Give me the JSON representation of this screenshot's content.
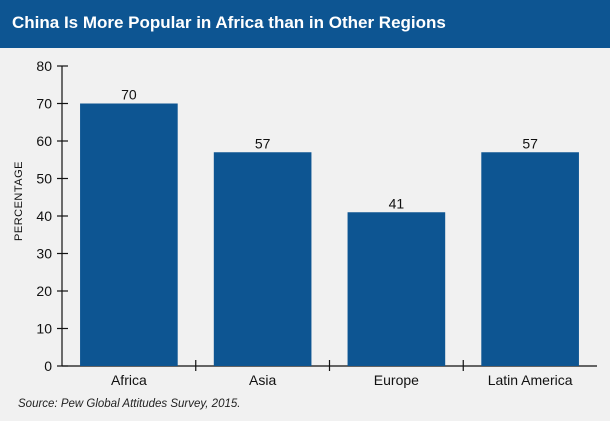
{
  "title": "China Is More Popular in Africa than in Other Regions",
  "source": "Source: Pew Global Attitudes Survey, 2015.",
  "colors": {
    "header": "#0d5592",
    "bar": "#0d5592",
    "background": "#f1f1f1"
  },
  "chart_data": {
    "type": "bar",
    "title": "China Is More Popular in Africa than in Other Regions",
    "xlabel": "",
    "ylabel": "PERCENTAGE",
    "categories": [
      "Africa",
      "Asia",
      "Europe",
      "Latin America"
    ],
    "values": [
      70,
      57,
      41,
      57
    ],
    "data_labels": [
      "70",
      "57",
      "41",
      "57"
    ],
    "ylim": [
      0,
      80
    ],
    "yticks": [
      0,
      10,
      20,
      30,
      40,
      50,
      60,
      70,
      80
    ],
    "grid": false,
    "legend": "none"
  }
}
